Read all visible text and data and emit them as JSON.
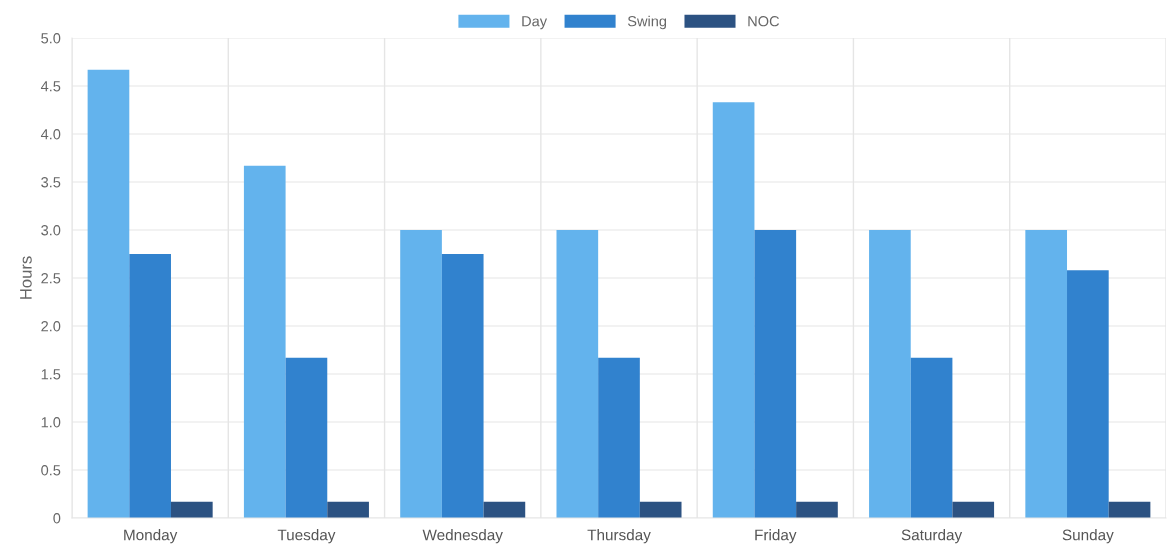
{
  "chart_data": {
    "type": "bar",
    "ylabel": "Hours",
    "categories": [
      "Monday",
      "Tuesday",
      "Wednesday",
      "Thursday",
      "Friday",
      "Saturday",
      "Sunday"
    ],
    "series": [
      {
        "name": "Day",
        "color": "#63b3ed",
        "values": [
          4.67,
          3.67,
          3.0,
          3.0,
          4.33,
          3.0,
          3.0
        ]
      },
      {
        "name": "Swing",
        "color": "#3182ce",
        "values": [
          2.75,
          1.67,
          2.75,
          1.67,
          3.0,
          1.67,
          2.58
        ]
      },
      {
        "name": "NOC",
        "color": "#2c5282",
        "values": [
          0.17,
          0.17,
          0.17,
          0.17,
          0.17,
          0.17,
          0.17
        ]
      }
    ],
    "ylim": [
      0,
      5
    ],
    "yticks": [
      0,
      {
        "value": 0.5,
        "label": "0.5"
      },
      {
        "value": 1,
        "label": "1.0"
      },
      {
        "value": 1.5,
        "label": "1.5"
      },
      {
        "value": 2,
        "label": "2.0"
      },
      {
        "value": 2.5,
        "label": "2.5"
      },
      {
        "value": 3,
        "label": "3.0"
      },
      {
        "value": 3.5,
        "label": "3.5"
      },
      {
        "value": 4,
        "label": "4.0"
      },
      {
        "value": 4.5,
        "label": "4.5"
      },
      {
        "value": 5,
        "label": "5.0"
      }
    ],
    "grid": true,
    "legend": "top"
  }
}
